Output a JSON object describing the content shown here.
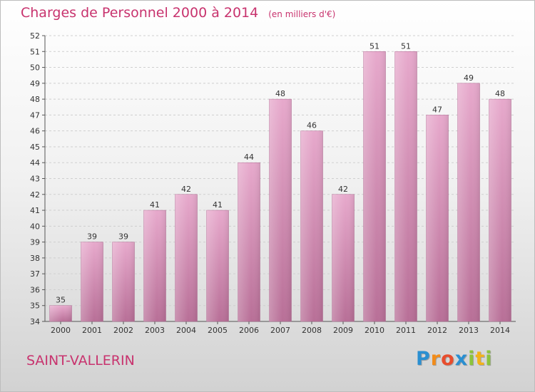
{
  "title": "Charges de Personnel 2000 à 2014",
  "subtitle": "(en milliers d'€)",
  "city": "SAINT-VALLERIN",
  "logo": {
    "letters": [
      "P",
      "r",
      "o",
      "x",
      "i",
      "t",
      "i"
    ],
    "colors": [
      "#2a8fd1",
      "#f28c1a",
      "#e84d2d",
      "#2a8fd1",
      "#8cc43c",
      "#f2b21a",
      "#8cc43c"
    ]
  },
  "chart_data": {
    "type": "bar",
    "categories": [
      "2000",
      "2001",
      "2002",
      "2003",
      "2004",
      "2005",
      "2006",
      "2007",
      "2008",
      "2009",
      "2010",
      "2011",
      "2012",
      "2013",
      "2014"
    ],
    "values": [
      35,
      39,
      39,
      41,
      42,
      41,
      44,
      48,
      46,
      42,
      51,
      51,
      47,
      49,
      48
    ],
    "title": "Charges de Personnel 2000 à 2014",
    "ylim": [
      34,
      52
    ],
    "ytick_step": 1,
    "grid": "horizontal-dashed",
    "bar_color": "#d88fb5"
  }
}
